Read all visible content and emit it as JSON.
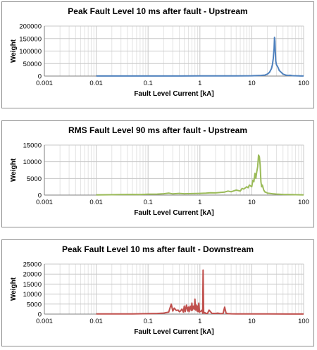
{
  "chart_data": [
    {
      "type": "line",
      "title": "Peak Fault Level 10 ms after fault - Upstream",
      "xlabel": "Fault Level Current [kA]",
      "ylabel": "Weight",
      "xscale": "log",
      "xlim": [
        0.001,
        100
      ],
      "ylim": [
        0,
        200000
      ],
      "xticks": [
        "0.001",
        "0.01",
        "0.1",
        "1",
        "10",
        "100"
      ],
      "yticks": [
        "0",
        "50000",
        "100000",
        "150000",
        "200000"
      ],
      "grid": true,
      "color": "#4f81bd",
      "series": [
        {
          "x": [
            0.01,
            0.1,
            1,
            5,
            10,
            15,
            18,
            20,
            22,
            24,
            25,
            26,
            27,
            27.5,
            28,
            28.5,
            29,
            30,
            31,
            32,
            34,
            37,
            40,
            45,
            50,
            55,
            60,
            70,
            80,
            90,
            100
          ],
          "y": [
            300,
            400,
            500,
            600,
            1000,
            2500,
            4000,
            8000,
            15000,
            30000,
            45000,
            70000,
            110000,
            155000,
            140000,
            95000,
            60000,
            45000,
            40000,
            35000,
            22000,
            15000,
            8000,
            4000,
            2500,
            3000,
            1500,
            1000,
            600,
            400,
            200
          ]
        }
      ]
    },
    {
      "type": "line",
      "title": "RMS Fault Level 90 ms after fault - Upstream",
      "xlabel": "Fault Level Current [kA]",
      "ylabel": "Weight",
      "xscale": "log",
      "xlim": [
        0.001,
        100
      ],
      "ylim": [
        0,
        15000
      ],
      "xticks": [
        "0.001",
        "0.01",
        "0.1",
        "1",
        "10",
        "100"
      ],
      "yticks": [
        "0",
        "5000",
        "10000",
        "15000"
      ],
      "grid": true,
      "color": "#9bbb59",
      "series": [
        {
          "x": [
            0.01,
            0.02,
            0.03,
            0.05,
            0.07,
            0.1,
            0.15,
            0.2,
            0.25,
            0.3,
            0.4,
            0.5,
            0.7,
            1,
            1.3,
            1.6,
            2,
            2.5,
            3,
            3.5,
            4,
            5,
            6,
            6.5,
            7,
            8,
            8.5,
            9,
            10,
            10.5,
            11,
            11.5,
            12,
            12.5,
            13,
            13.5,
            14,
            14.5,
            15,
            15.5,
            16,
            17,
            18,
            19,
            20,
            25,
            30,
            40,
            50,
            70,
            100
          ],
          "y": [
            50,
            100,
            150,
            200,
            150,
            250,
            300,
            400,
            600,
            350,
            500,
            400,
            450,
            500,
            600,
            700,
            650,
            800,
            900,
            1200,
            1000,
            1500,
            1200,
            2000,
            1800,
            2500,
            2200,
            3000,
            2500,
            4500,
            4000,
            6500,
            5000,
            7000,
            8500,
            12000,
            11500,
            9000,
            4000,
            2500,
            3000,
            1500,
            900,
            800,
            600,
            400,
            300,
            200,
            150,
            100,
            50
          ]
        }
      ]
    },
    {
      "type": "line",
      "title": "Peak Fault Level 10 ms after fault - Downstream",
      "xlabel": "Fault Level Current [kA]",
      "ylabel": "Weight",
      "xscale": "log",
      "xlim": [
        0.001,
        100
      ],
      "ylim": [
        0,
        25000
      ],
      "xticks": [
        "0.001",
        "0.01",
        "0.1",
        "1",
        "10",
        "100"
      ],
      "yticks": [
        "0",
        "5000",
        "10000",
        "15000",
        "20000",
        "25000"
      ],
      "grid": true,
      "color": "#c0504d",
      "series": [
        {
          "x": [
            0.01,
            0.05,
            0.1,
            0.15,
            0.2,
            0.25,
            0.28,
            0.3,
            0.32,
            0.35,
            0.38,
            0.4,
            0.42,
            0.45,
            0.48,
            0.5,
            0.52,
            0.55,
            0.58,
            0.6,
            0.62,
            0.65,
            0.68,
            0.7,
            0.72,
            0.75,
            0.78,
            0.8,
            0.82,
            0.85,
            0.88,
            0.9,
            0.92,
            0.95,
            0.98,
            1,
            1.05,
            1.1,
            1.13,
            1.15,
            1.18,
            1.2,
            1.25,
            1.3,
            1.4,
            1.5,
            1.7,
            2,
            2.2,
            2.5,
            2.8,
            3,
            3.2,
            3.5,
            4,
            5,
            10,
            20,
            50,
            100
          ],
          "y": [
            100,
            100,
            200,
            300,
            500,
            1000,
            5000,
            1500,
            3000,
            1800,
            2000,
            1200,
            1500,
            2500,
            1000,
            4000,
            1200,
            4500,
            1500,
            3500,
            1200,
            4000,
            1800,
            5500,
            2000,
            4000,
            2500,
            7500,
            2000,
            4500,
            1500,
            4000,
            1200,
            5500,
            1000,
            1200,
            1500,
            2000,
            500,
            22000,
            1500,
            500,
            700,
            400,
            300,
            2000,
            400,
            300,
            500,
            200,
            300,
            3500,
            400,
            200,
            150,
            100,
            100,
            80,
            50,
            50
          ]
        }
      ]
    }
  ]
}
